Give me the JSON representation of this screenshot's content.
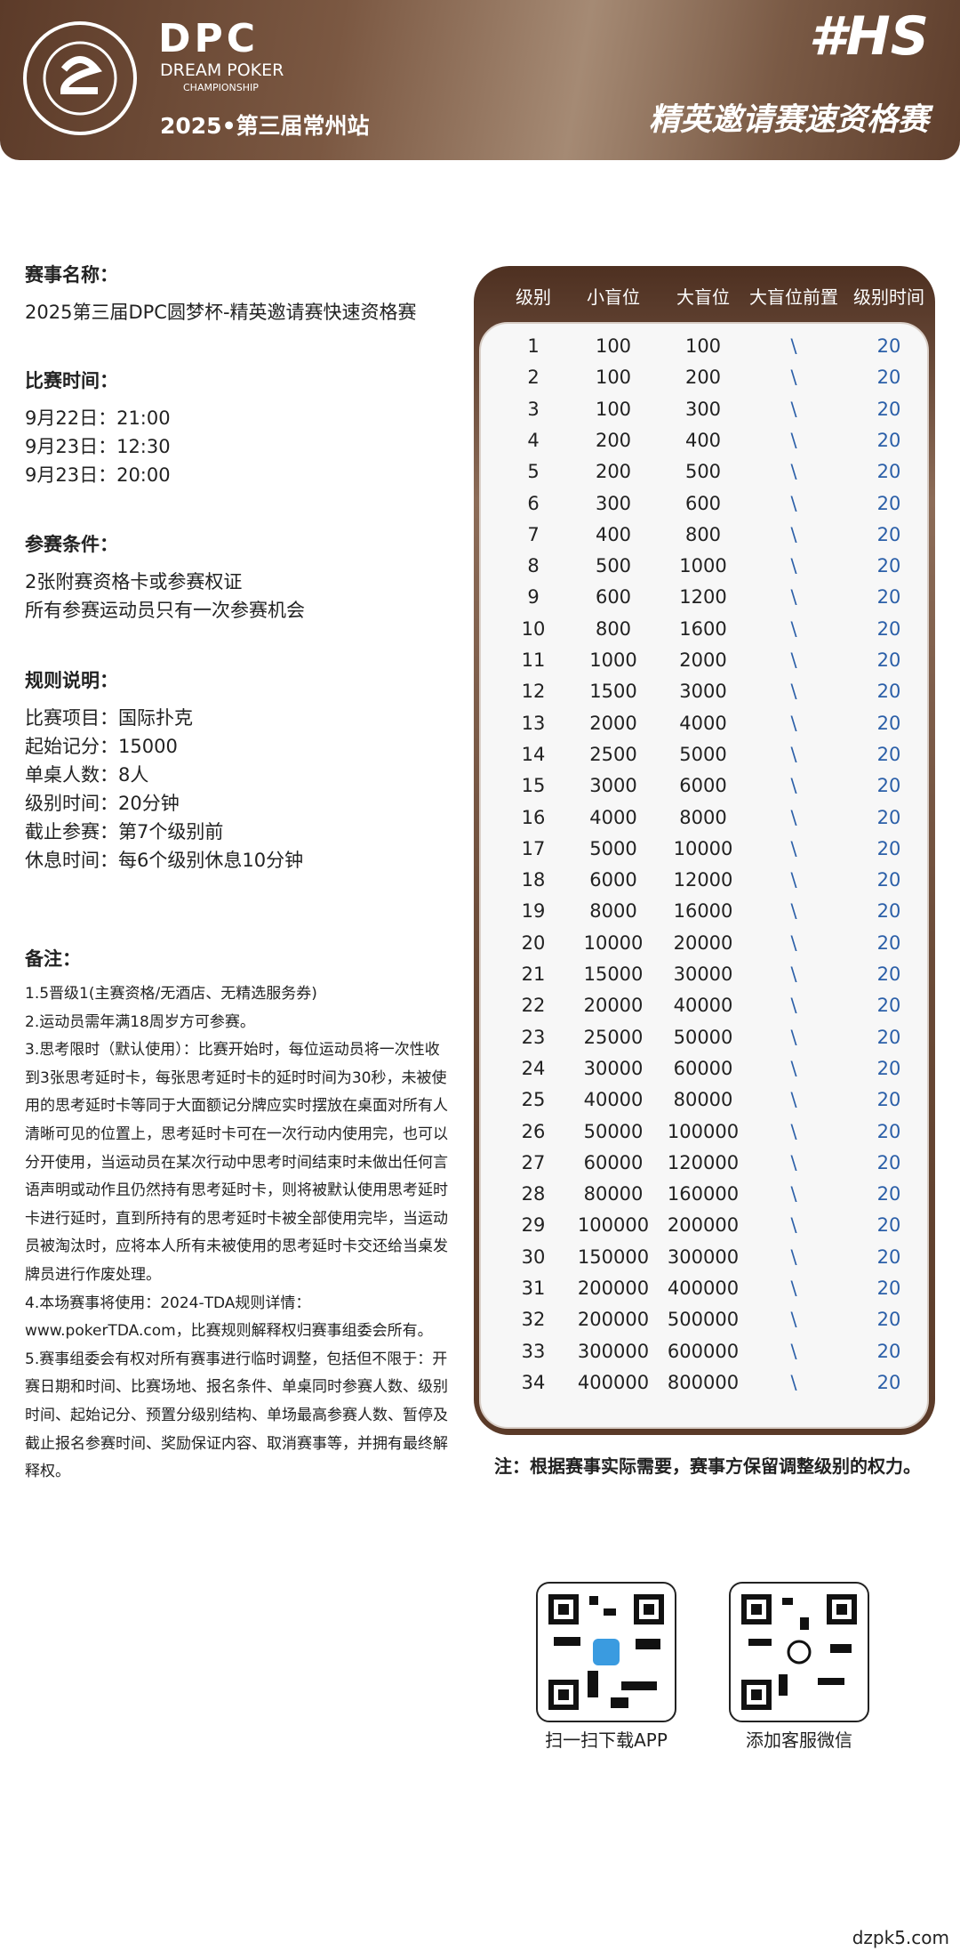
{
  "header": {
    "brand": "DPC",
    "brand_sub": "DREAM POKER",
    "brand_sub2": "CHAMPIONSHIP",
    "edition": "2025•第三届常州站",
    "tag": "#HS",
    "event_title": "精英邀请赛速资格赛"
  },
  "sections": [
    {
      "heading": "赛事名称：",
      "lines": [
        "2025第三届DPC圆梦杯-精英邀请赛快速资格赛"
      ]
    },
    {
      "heading": "比赛时间：",
      "lines": [
        "9月22日：21:00",
        "9月23日：12:30",
        "9月23日：20:00"
      ]
    },
    {
      "heading": "参赛条件：",
      "lines": [
        "2张附赛资格卡或参赛权证",
        "所有参赛运动员只有一次参赛机会"
      ]
    },
    {
      "heading": "规则说明：",
      "lines": [
        "比赛项目：国际扑克",
        "起始记分：15000",
        "单桌人数：8人",
        "级别时间：20分钟",
        "截止参赛：第7个级别前",
        "休息时间：每6个级别休息10分钟"
      ]
    }
  ],
  "notes": {
    "heading": "备注：",
    "items": [
      "1.5晋级1(主赛资格/无酒店、无精选服务券)",
      "2.运动员需年满18周岁方可参赛。",
      "3.思考限时（默认使用）：比赛开始时，每位运动员将一次性收到3张思考延时卡，每张思考延时卡的延时时间为30秒，未被使用的思考延时卡等同于大面额记分牌应实时摆放在桌面对所有人清晰可见的位置上，思考延时卡可在一次行动内使用完，也可以分开使用，当运动员在某次行动中思考时间结束时未做出任何言语声明或动作且仍然持有思考延时卡，则将被默认使用思考延时卡进行延时，直到所持有的思考延时卡被全部使用完毕，当运动员被淘汰时，应将本人所有未被使用的思考延时卡交还给当桌发牌员进行作废处理。",
      "4.本场赛事将使用：2024-TDA规则详情：www.pokerTDA.com，比赛规则解释权归赛事组委会所有。",
      "5.赛事组委会有权对所有赛事进行临时调整，包括但不限于：开赛日期和时间、比赛场地、报名条件、单桌同时参赛人数、级别时间、起始记分、预置分级别结构、单场最高参赛人数、暂停及截止报名参赛时间、奖励保证内容、取消赛事等，并拥有最终解释权。"
    ]
  },
  "table": {
    "columns": [
      "级别",
      "小盲位",
      "大盲位",
      "大盲位前置",
      "级别时间"
    ],
    "rows": [
      [
        1,
        100,
        100,
        "\\",
        20
      ],
      [
        2,
        100,
        200,
        "\\",
        20
      ],
      [
        3,
        100,
        300,
        "\\",
        20
      ],
      [
        4,
        200,
        400,
        "\\",
        20
      ],
      [
        5,
        200,
        500,
        "\\",
        20
      ],
      [
        6,
        300,
        600,
        "\\",
        20
      ],
      [
        7,
        400,
        800,
        "\\",
        20
      ],
      [
        8,
        500,
        1000,
        "\\",
        20
      ],
      [
        9,
        600,
        1200,
        "\\",
        20
      ],
      [
        10,
        800,
        1600,
        "\\",
        20
      ],
      [
        11,
        1000,
        2000,
        "\\",
        20
      ],
      [
        12,
        1500,
        3000,
        "\\",
        20
      ],
      [
        13,
        2000,
        4000,
        "\\",
        20
      ],
      [
        14,
        2500,
        5000,
        "\\",
        20
      ],
      [
        15,
        3000,
        6000,
        "\\",
        20
      ],
      [
        16,
        4000,
        8000,
        "\\",
        20
      ],
      [
        17,
        5000,
        10000,
        "\\",
        20
      ],
      [
        18,
        6000,
        12000,
        "\\",
        20
      ],
      [
        19,
        8000,
        16000,
        "\\",
        20
      ],
      [
        20,
        10000,
        20000,
        "\\",
        20
      ],
      [
        21,
        15000,
        30000,
        "\\",
        20
      ],
      [
        22,
        20000,
        40000,
        "\\",
        20
      ],
      [
        23,
        25000,
        50000,
        "\\",
        20
      ],
      [
        24,
        30000,
        60000,
        "\\",
        20
      ],
      [
        25,
        40000,
        80000,
        "\\",
        20
      ],
      [
        26,
        50000,
        100000,
        "\\",
        20
      ],
      [
        27,
        60000,
        120000,
        "\\",
        20
      ],
      [
        28,
        80000,
        160000,
        "\\",
        20
      ],
      [
        29,
        100000,
        200000,
        "\\",
        20
      ],
      [
        30,
        150000,
        300000,
        "\\",
        20
      ],
      [
        31,
        200000,
        400000,
        "\\",
        20
      ],
      [
        32,
        200000,
        500000,
        "\\",
        20
      ],
      [
        33,
        300000,
        600000,
        "\\",
        20
      ],
      [
        34,
        400000,
        800000,
        "\\",
        20
      ]
    ]
  },
  "table_note": "注：根据赛事实际需要，赛事方保留调整级别的权力。",
  "qr": [
    {
      "label": "扫一扫下载APP"
    },
    {
      "label": "添加客服微信"
    }
  ],
  "watermark": "dzpk5.com"
}
